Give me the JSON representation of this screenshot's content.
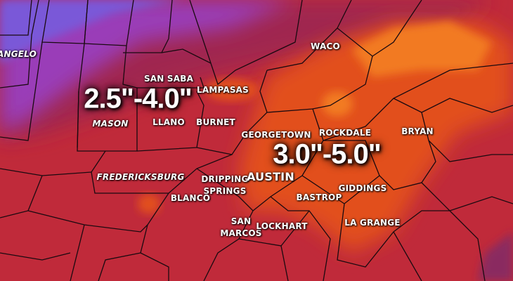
{
  "map": {
    "colors": {
      "base": "#c02a3a",
      "purple": "#9a3cb8",
      "violet": "#7a58d8",
      "maroon": "#a02850",
      "orange": "#e2501f",
      "bright_orange": "#f27a22"
    },
    "totals": [
      {
        "id": "west",
        "text": "2.5\"-4.0\""
      },
      {
        "id": "east",
        "text": "3.0\"-5.0\""
      }
    ],
    "places": {
      "san_angelo": "ANGELO",
      "san_saba": "SAN SABA",
      "lampasas": "LAMPASAS",
      "mason": "MASON",
      "llano": "LLANO",
      "burnet": "BURNET",
      "waco": "WACO",
      "georgetown": "GEORGETOWN",
      "rockdale": "ROCKDALE",
      "bryan": "BRYAN",
      "fredericksburg": "FREDERICKSBURG",
      "dripping_springs_1": "DRIPPING",
      "dripping_springs_2": "SPRINGS",
      "austin": "AUSTIN",
      "blanco": "BLANCO",
      "bastrop": "BASTROP",
      "giddings": "GIDDINGS",
      "san_marcos_1": "SAN",
      "san_marcos_2": "MARCOS",
      "lockhart": "LOCKHART",
      "la_grange": "LA GRANGE"
    }
  }
}
